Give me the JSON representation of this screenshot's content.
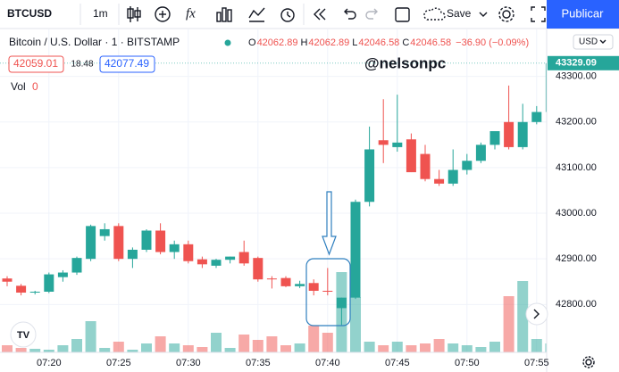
{
  "toolbar": {
    "symbol": "BTCUSD",
    "interval": "1m",
    "save": "Save",
    "publish": "Publicar"
  },
  "legend": {
    "title": "Bitcoin / U.S. Dollar · 1 · BITSTAMP",
    "ohlc": [
      {
        "key": "O",
        "value": "42062.89"
      },
      {
        "key": "H",
        "value": "42062.89"
      },
      {
        "key": "L",
        "value": "42046.58"
      },
      {
        "key": "C",
        "value": "42046.58"
      }
    ],
    "change": "−36.90 (−0.09%)",
    "bid": "42059.01",
    "spread": "18.48",
    "ask": "42077.49",
    "vol_label": "Vol",
    "vol_value": "0"
  },
  "watermark": "@nelsonpc",
  "currency": "USD",
  "last_price_label": "43329.09",
  "chart_data": {
    "type": "candlestick",
    "categories": [
      null,
      null,
      null,
      "07:20",
      null,
      null,
      null,
      null,
      "07:25",
      null,
      null,
      null,
      null,
      "07:30",
      null,
      null,
      null,
      null,
      "07:35",
      null,
      null,
      null,
      null,
      "07:40",
      null,
      null,
      null,
      null,
      "07:45",
      null,
      null,
      null,
      null,
      "07:50",
      null,
      null,
      null,
      null,
      "07:55",
      null
    ],
    "open": [
      42857,
      42841,
      42826,
      42828,
      42860,
      42870,
      42900,
      42950,
      42972,
      42900,
      42920,
      42962,
      42915,
      42932,
      42899,
      42885,
      42898,
      42915,
      42902,
      42857,
      42858,
      42840,
      42847,
      42830,
      42792,
      42815,
      43025,
      43160,
      43145,
      43162,
      43130,
      43075,
      43065,
      43095,
      43115,
      43150,
      43200,
      43145,
      43200,
      43222
    ],
    "high": [
      42862,
      42845,
      42830,
      42870,
      42875,
      42905,
      42975,
      42978,
      42978,
      42925,
      42965,
      42978,
      42940,
      42940,
      42905,
      42900,
      42905,
      42940,
      42905,
      42862,
      42862,
      42852,
      42855,
      42880,
      42815,
      43030,
      43190,
      43250,
      43260,
      43175,
      43150,
      43095,
      43140,
      43130,
      43155,
      43175,
      43280,
      43240,
      43235,
      43329
    ],
    "low": [
      42840,
      42820,
      42822,
      42825,
      42850,
      42865,
      42895,
      42940,
      42895,
      42880,
      42915,
      42910,
      42900,
      42890,
      42880,
      42880,
      42890,
      42885,
      42850,
      42835,
      42838,
      42836,
      42820,
      42820,
      42755,
      42812,
      43015,
      43110,
      43135,
      43090,
      43070,
      43060,
      43060,
      43085,
      43110,
      43140,
      43140,
      43140,
      43195,
      43215
    ],
    "close": [
      42850,
      42826,
      42828,
      42866,
      42870,
      42902,
      42972,
      42965,
      42900,
      42920,
      42962,
      42915,
      42932,
      42895,
      42888,
      42898,
      42905,
      42890,
      42855,
      42855,
      42840,
      42845,
      42830,
      42828,
      42815,
      43025,
      43140,
      43150,
      43155,
      43090,
      43075,
      43065,
      43095,
      43115,
      43150,
      43180,
      43145,
      43200,
      43222,
      43329.09
    ],
    "volume": [
      8,
      5,
      4,
      3,
      8,
      15,
      35,
      5,
      12,
      3,
      10,
      18,
      10,
      8,
      6,
      22,
      5,
      20,
      14,
      18,
      8,
      10,
      30,
      22,
      90,
      62,
      12,
      8,
      12,
      8,
      10,
      15,
      10,
      8,
      6,
      12,
      63,
      80,
      15,
      10
    ],
    "up_color": "#26a69a",
    "down_color": "#ef5350",
    "ylim": [
      42695,
      43403
    ],
    "yticks": [
      {
        "value": 42800,
        "label": "42800.00"
      },
      {
        "value": 42900,
        "label": "42900.00"
      },
      {
        "value": 43000,
        "label": "43000.00"
      },
      {
        "value": 43100,
        "label": "43100.00"
      },
      {
        "value": 43200,
        "label": "43200.00"
      },
      {
        "value": 43300,
        "label": "43300.00"
      }
    ],
    "grid": true
  }
}
